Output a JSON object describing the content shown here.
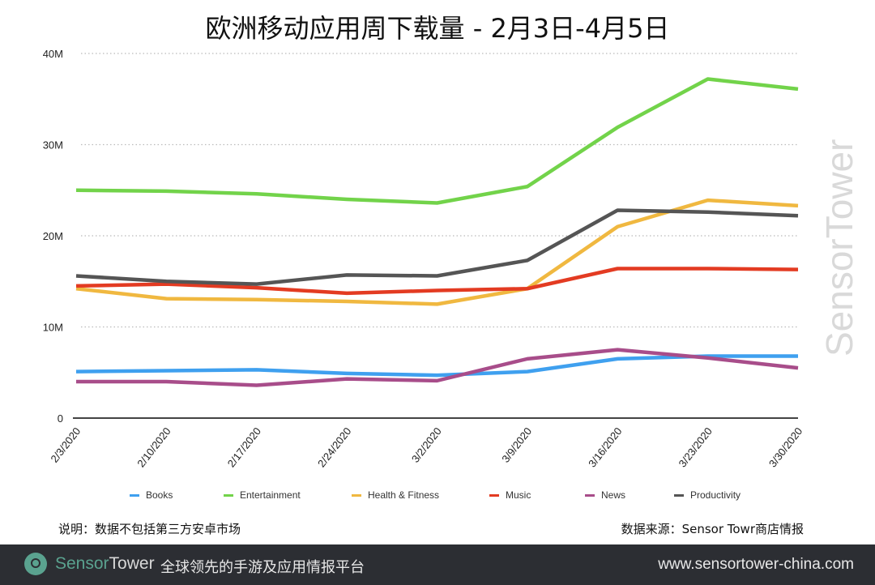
{
  "title": "欧洲移动应用周下载量 - 2月3日-4月5日",
  "chart_data": {
    "type": "line",
    "title": "欧洲移动应用周下载量 - 2月3日-4月5日",
    "x": [
      "2/3/2020",
      "2/10/2020",
      "2/17/2020",
      "2/24/2020",
      "3/2/2020",
      "3/9/2020",
      "3/16/2020",
      "3/23/2020",
      "3/30/2020"
    ],
    "yticks": [
      {
        "v": 0,
        "label": "0"
      },
      {
        "v": 10,
        "label": "10M"
      },
      {
        "v": 20,
        "label": "20M"
      },
      {
        "v": 30,
        "label": "30M"
      },
      {
        "v": 40,
        "label": "40M"
      }
    ],
    "ylim": [
      0,
      40
    ],
    "yunit": "M",
    "grid": true,
    "legend_placement": "bottom",
    "series": [
      {
        "name": "Books",
        "color": "#3fa0ef",
        "values": [
          5.1,
          5.2,
          5.3,
          4.9,
          4.7,
          5.1,
          6.5,
          6.8,
          6.8
        ]
      },
      {
        "name": "Entertainment",
        "color": "#72d34a",
        "values": [
          25.0,
          24.9,
          24.6,
          24.0,
          23.6,
          25.4,
          31.9,
          37.2,
          36.1
        ]
      },
      {
        "name": "Health & Fitness",
        "color": "#f0b840",
        "values": [
          14.2,
          13.1,
          13.0,
          12.8,
          12.5,
          14.2,
          21.0,
          23.9,
          23.3
        ]
      },
      {
        "name": "Music",
        "color": "#e33b22",
        "values": [
          14.5,
          14.7,
          14.3,
          13.7,
          14.0,
          14.2,
          16.4,
          16.4,
          16.3
        ]
      },
      {
        "name": "News",
        "color": "#a84d8a",
        "values": [
          4.0,
          4.0,
          3.6,
          4.3,
          4.1,
          6.5,
          7.5,
          6.6,
          5.5
        ]
      },
      {
        "name": "Productivity",
        "color": "#555555",
        "values": [
          15.6,
          15.0,
          14.7,
          15.7,
          15.6,
          17.3,
          22.8,
          22.6,
          22.2
        ]
      }
    ]
  },
  "watermark": "SensorTower",
  "note_left": "说明：数据不包括第三方安卓市场",
  "note_right": "数据来源：Sensor Towr商店情报",
  "footer": {
    "brand_a": "Sensor",
    "brand_b": "Tower",
    "slogan": "全球领先的手游及应用情报平台",
    "url": "www.sensortower-china.com",
    "accent": "#5aa28f"
  }
}
